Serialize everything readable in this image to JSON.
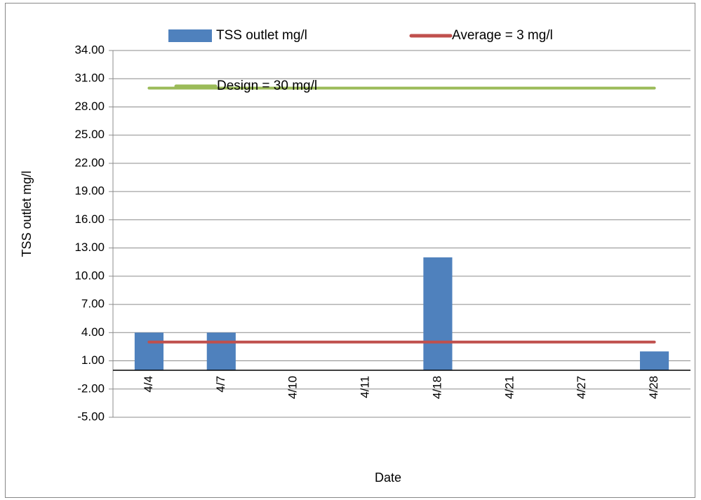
{
  "chart_data": {
    "type": "bar",
    "categories": [
      "4/4",
      "4/7",
      "4/10",
      "4/11",
      "4/18",
      "4/21",
      "4/27",
      "4/28"
    ],
    "series": [
      {
        "name": "TSS outlet  mg/l",
        "type": "bar",
        "color": "#4F81BD",
        "values": [
          4,
          4,
          0,
          0,
          12,
          0,
          0,
          2
        ]
      },
      {
        "name": "Average = 3 mg/l",
        "type": "line",
        "color": "#C0504D",
        "values": [
          3,
          3,
          3,
          3,
          3,
          3,
          3,
          3
        ]
      },
      {
        "name": "Design = 30 mg/l",
        "type": "line",
        "color": "#9BBB59",
        "values": [
          30,
          30,
          30,
          30,
          30,
          30,
          30,
          30
        ]
      }
    ],
    "xlabel": "Date",
    "ylabel": "TSS outlet mg/l",
    "ylim": [
      -5,
      34
    ],
    "yticks": [
      "34.00",
      "31.00",
      "28.00",
      "25.00",
      "22.00",
      "19.00",
      "16.00",
      "13.00",
      "10.00",
      "7.00",
      "4.00",
      "1.00",
      "-2.00",
      "-5.00"
    ],
    "grid": true,
    "legend_position": "top"
  }
}
